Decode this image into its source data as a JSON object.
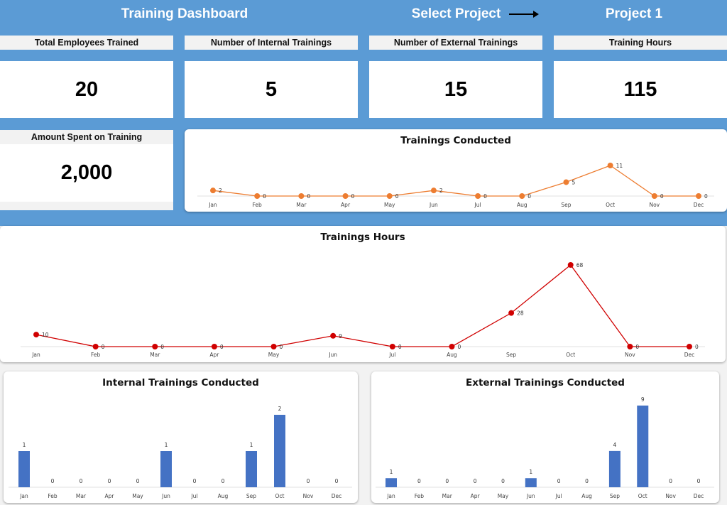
{
  "header": {
    "title": "Training Dashboard",
    "select_label": "Select Project",
    "project": "Project 1"
  },
  "kpis": [
    {
      "label": "Total Employees Trained",
      "value": "20"
    },
    {
      "label": "Number of Internal Trainings",
      "value": "5"
    },
    {
      "label": "Number of External Trainings",
      "value": "15"
    },
    {
      "label": "Training Hours",
      "value": "115"
    },
    {
      "label": "Amount Spent on Training",
      "value": "2,000"
    }
  ],
  "chart_data": [
    {
      "type": "line",
      "title": "Trainings Conducted",
      "categories": [
        "Jan",
        "Feb",
        "Mar",
        "Apr",
        "May",
        "Jun",
        "Jul",
        "Aug",
        "Sep",
        "Oct",
        "Nov",
        "Dec"
      ],
      "values": [
        2,
        0,
        0,
        0,
        0,
        2,
        0,
        0,
        5,
        11,
        0,
        0
      ],
      "color": "#ed7d31"
    },
    {
      "type": "line",
      "title": "Trainings Hours",
      "categories": [
        "Jan",
        "Feb",
        "Mar",
        "Apr",
        "May",
        "Jun",
        "Jul",
        "Aug",
        "Sep",
        "Oct",
        "Nov",
        "Dec"
      ],
      "values": [
        10,
        0,
        0,
        0,
        0,
        9,
        0,
        0,
        28,
        68,
        0,
        0
      ],
      "color": "#d00000"
    },
    {
      "type": "bar",
      "title": "Internal Trainings Conducted",
      "categories": [
        "Jan",
        "Feb",
        "Mar",
        "Apr",
        "May",
        "Jun",
        "Jul",
        "Aug",
        "Sep",
        "Oct",
        "Nov",
        "Dec"
      ],
      "values": [
        1,
        0,
        0,
        0,
        0,
        1,
        0,
        0,
        1,
        2,
        0,
        0
      ],
      "color": "#4472c4"
    },
    {
      "type": "bar",
      "title": "External Trainings Conducted",
      "categories": [
        "Jan",
        "Feb",
        "Mar",
        "Apr",
        "May",
        "Jun",
        "Jul",
        "Aug",
        "Sep",
        "Oct",
        "Nov",
        "Dec"
      ],
      "values": [
        1,
        0,
        0,
        0,
        0,
        1,
        0,
        0,
        4,
        9,
        0,
        0
      ],
      "color": "#4472c4"
    }
  ]
}
